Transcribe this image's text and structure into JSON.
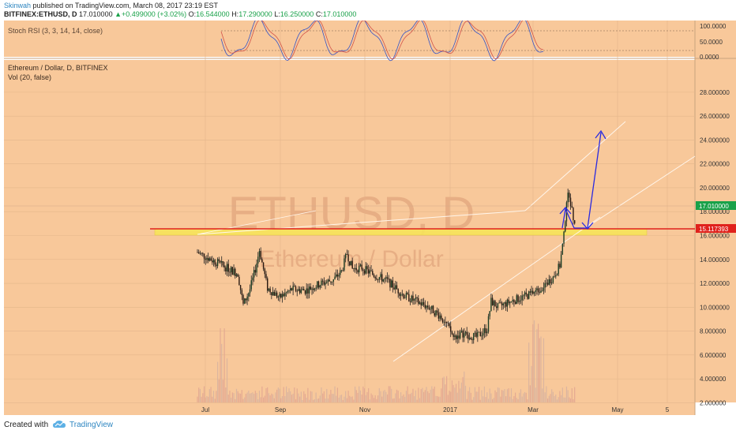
{
  "header": {
    "user": "Skinwah",
    "published": "published on TradingView.com, March 08, 2017 23:19 EST",
    "symbol": "BITFINEX:ETHUSD, D",
    "last": "17.010000",
    "change": "+0.499000 (+3.02%)",
    "open_label": "O:",
    "open": "16.544000",
    "high_label": "H:",
    "high": "17.290000",
    "low_label": "L:",
    "low": "16.250000",
    "close_label": "C:",
    "close": "17.010000"
  },
  "rsi": {
    "label": "Stoch RSI (3, 3, 14, 14, close)",
    "ticks": [
      "100.0000",
      "50.0000",
      "0.0000"
    ]
  },
  "main": {
    "title": "Ethereum / Dollar, D, BITFINEX",
    "vol_label": "Vol (20, false)",
    "watermark_symbol": "ETHUSD, D",
    "watermark_name": "Ethereum / Dollar"
  },
  "chart_data": {
    "type": "candlestick",
    "symbol": "ETHUSD",
    "interval": "D",
    "y_ticks": [
      "28.000000",
      "26.000000",
      "24.000000",
      "22.000000",
      "20.000000",
      "18.000000",
      "16.000000",
      "14.000000",
      "12.000000",
      "10.000000",
      "8.000000",
      "6.000000",
      "4.000000",
      "2.000000"
    ],
    "ylim": [
      0.7,
      29.2
    ],
    "x_labels": [
      "Jul",
      "Sep",
      "Nov",
      "2017",
      "Mar",
      "May",
      "5"
    ],
    "price_tags": {
      "last": "17.010000",
      "support": "15.117393"
    },
    "colors": {
      "background": "#f8c89a",
      "candle": "#222222",
      "support": "#e0211c",
      "zone": "#f6e35a",
      "arrow": "#2a2ae0",
      "last_tag": "#19a149"
    },
    "approx_close_path": [
      {
        "x": "Jun 25",
        "y": 14.6
      },
      {
        "x": "Jul 01",
        "y": 12.8
      },
      {
        "x": "Jul 05",
        "y": 10.2
      },
      {
        "x": "Jul 10",
        "y": 11.5
      },
      {
        "x": "Jul 14",
        "y": 13.2
      },
      {
        "x": "Jul 17",
        "y": 14.8
      },
      {
        "x": "Jul 23",
        "y": 11.6
      },
      {
        "x": "Aug 01",
        "y": 10.8
      },
      {
        "x": "Aug 10",
        "y": 11.5
      },
      {
        "x": "Aug 20",
        "y": 11.4
      },
      {
        "x": "Sep 01",
        "y": 12.0
      },
      {
        "x": "Sep 10",
        "y": 12.3
      },
      {
        "x": "Sep 16",
        "y": 13.0
      },
      {
        "x": "Sep 20",
        "y": 14.5
      },
      {
        "x": "Sep 24",
        "y": 13.2
      },
      {
        "x": "Oct 01",
        "y": 13.3
      },
      {
        "x": "Oct 10",
        "y": 12.7
      },
      {
        "x": "Oct 20",
        "y": 12.2
      },
      {
        "x": "Nov 01",
        "y": 11.0
      },
      {
        "x": "Nov 10",
        "y": 10.5
      },
      {
        "x": "Nov 20",
        "y": 10.0
      },
      {
        "x": "Dec 01",
        "y": 9.0
      },
      {
        "x": "Dec 08",
        "y": 7.5
      },
      {
        "x": "Dec 15",
        "y": 7.8
      },
      {
        "x": "Dec 25",
        "y": 7.5
      },
      {
        "x": "Jan 02",
        "y": 8.2
      },
      {
        "x": "Jan 05",
        "y": 10.5
      },
      {
        "x": "Jan 10",
        "y": 10.0
      },
      {
        "x": "Jan 20",
        "y": 10.5
      },
      {
        "x": "Feb 01",
        "y": 11.0
      },
      {
        "x": "Feb 10",
        "y": 11.5
      },
      {
        "x": "Feb 20",
        "y": 12.5
      },
      {
        "x": "Feb 25",
        "y": 13.5
      },
      {
        "x": "Feb 28",
        "y": 16.0
      },
      {
        "x": "Mar 02",
        "y": 19.0
      },
      {
        "x": "Mar 04",
        "y": 19.5
      },
      {
        "x": "Mar 06",
        "y": 18.0
      },
      {
        "x": "Mar 08",
        "y": 17.01
      }
    ]
  },
  "footer": {
    "created": "Created with",
    "brand": "TradingView"
  }
}
